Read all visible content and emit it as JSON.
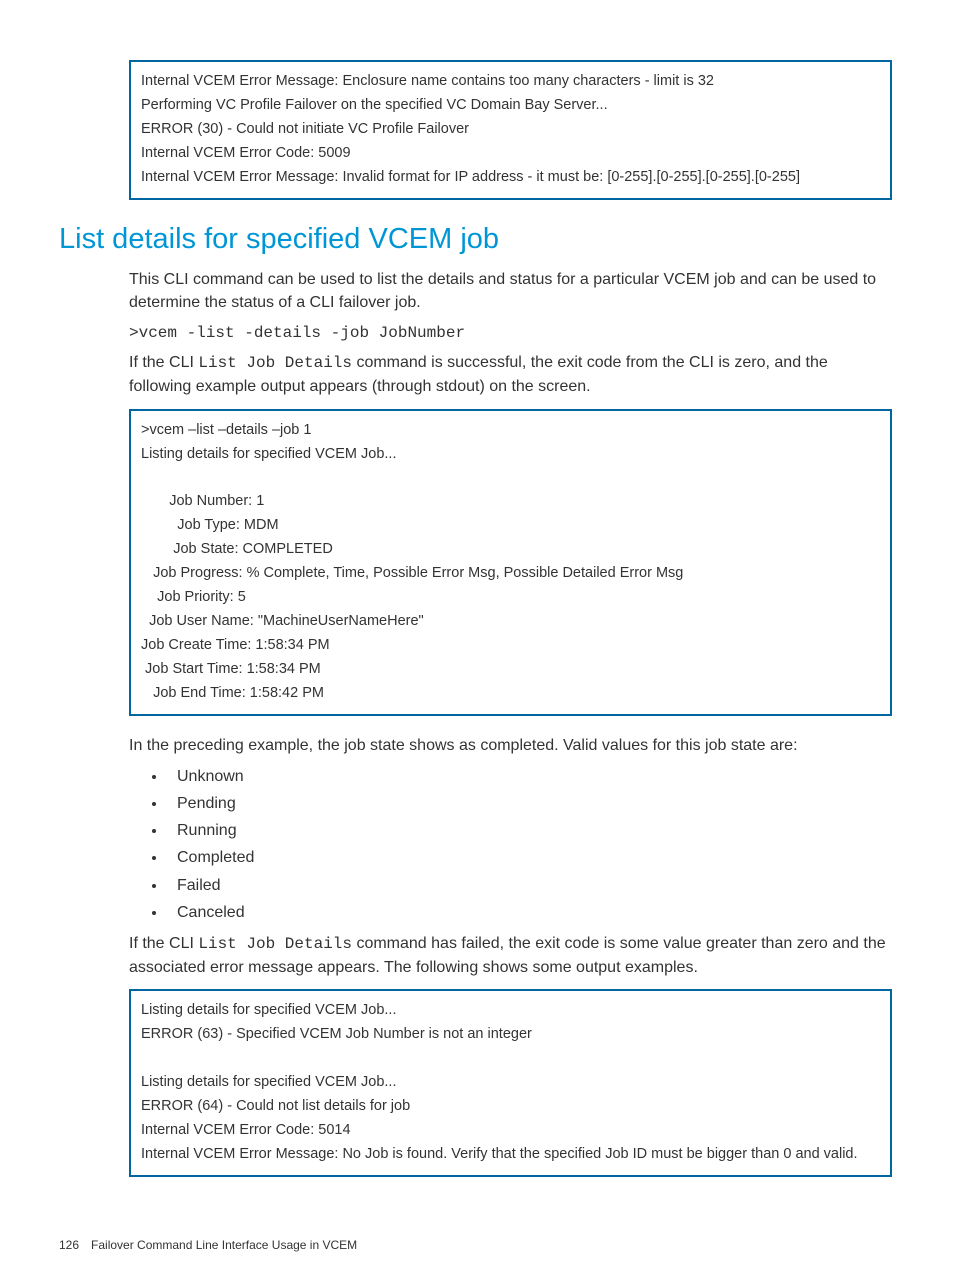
{
  "box1": {
    "lines": [
      "Internal VCEM Error Message: Enclosure name contains too many characters - limit is 32",
      "Performing VC Profile Failover on the specified VC Domain Bay Server...",
      "ERROR (30) - Could not initiate VC Profile Failover",
      "Internal VCEM Error Code: 5009",
      "Internal VCEM Error Message: Invalid format for IP address - it must be: [0-255].[0-255].[0-255].[0-255]"
    ]
  },
  "heading": "List details for specified VCEM job",
  "para1": "This CLI command can be used to list the details and status for a particular VCEM job and can be used to determine the status of a CLI failover job.",
  "cmd1": ">vcem -list -details -job JobNumber",
  "para2a": "If the CLI ",
  "para2b": "List Job Details",
  "para2c": " command is successful, the exit code from the CLI is zero, and the following example output appears (through stdout) on the screen.",
  "box2": {
    "lines": [
      ">vcem –list –details –job 1",
      "Listing details for specified VCEM Job...",
      "",
      "       Job Number: 1",
      "         Job Type: MDM",
      "        Job State: COMPLETED",
      "   Job Progress: % Complete, Time, Possible Error Msg, Possible Detailed Error Msg",
      "    Job Priority: 5",
      "  Job User Name: \"MachineUserNameHere\"",
      "Job Create Time: 1:58:34 PM",
      " Job Start Time: 1:58:34 PM",
      "   Job End Time: 1:58:42 PM"
    ]
  },
  "para3": "In the preceding example, the job state shows as completed. Valid values for this job state are:",
  "bullets": [
    "Unknown",
    "Pending",
    "Running",
    "Completed",
    "Failed",
    "Canceled"
  ],
  "para4a": "If the CLI ",
  "para4b": "List Job Details",
  "para4c": " command has failed, the exit code is some value greater than zero and the associated error message appears. The following shows some output examples.",
  "box3": {
    "lines": [
      "Listing details for specified VCEM Job...",
      "ERROR (63) - Specified VCEM Job Number is not an integer",
      "",
      "Listing details for specified VCEM Job...",
      "ERROR (64) - Could not list details for job",
      "Internal VCEM Error Code: 5014",
      "Internal VCEM Error Message: No Job is found. Verify that the specified Job ID must be bigger than 0 and valid."
    ]
  },
  "footer": {
    "page": "126",
    "title": "Failover Command Line Interface Usage in VCEM"
  }
}
